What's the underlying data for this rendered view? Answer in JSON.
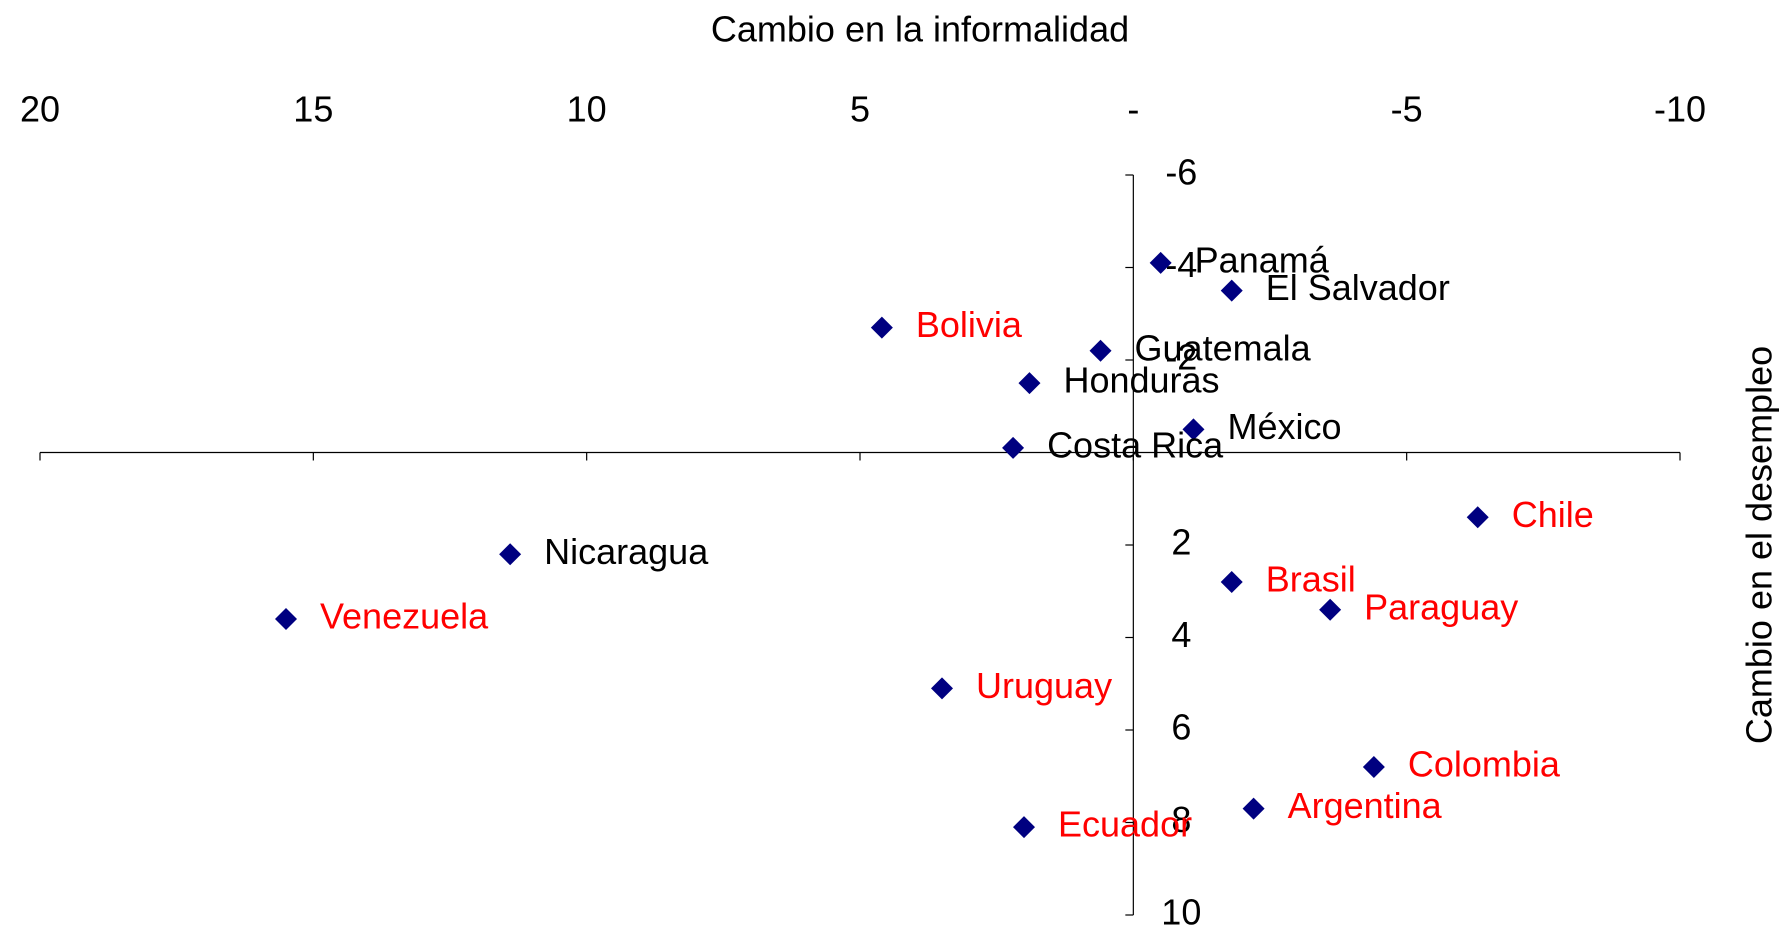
{
  "chart_data": {
    "type": "scatter",
    "xlabel": "Cambio en la informalidad",
    "ylabel": "Cambio en el desempleo",
    "labels": [
      "Panamá",
      "El Salvador",
      "Bolivia",
      "Guatemala",
      "Honduras",
      "México",
      "Costa Rica",
      "Chile",
      "Nicaragua",
      "Brasil",
      "Paraguay",
      "Venezuela",
      "Uruguay",
      "Colombia",
      "Argentina",
      "Ecuador"
    ],
    "x": [
      -0.5,
      -1.8,
      4.6,
      0.6,
      1.9,
      -1.1,
      2.2,
      -6.3,
      11.4,
      -1.8,
      -3.6,
      15.5,
      3.5,
      -4.4,
      -2.2,
      2.0
    ],
    "y": [
      -4.1,
      -3.5,
      -2.7,
      -2.2,
      -1.5,
      -0.5,
      -0.1,
      1.4,
      2.2,
      2.8,
      3.4,
      3.6,
      5.1,
      6.8,
      7.7,
      8.1
    ],
    "label_colors": [
      "#000000",
      "#000000",
      "#ff0000",
      "#000000",
      "#000000",
      "#000000",
      "#000000",
      "#ff0000",
      "#000000",
      "#ff0000",
      "#ff0000",
      "#ff0000",
      "#ff0000",
      "#ff0000",
      "#ff0000",
      "#ff0000"
    ],
    "marker_color": "#000080",
    "xlim": [
      20,
      -10
    ],
    "xticks": [
      20,
      15,
      10,
      5,
      {
        "value": 0,
        "label": "-"
      },
      -5,
      -10
    ],
    "ylim": [
      -6,
      10
    ],
    "yticks": [
      -6,
      -4,
      -2,
      2,
      4,
      6,
      8,
      10
    ],
    "y_reversed": true
  }
}
